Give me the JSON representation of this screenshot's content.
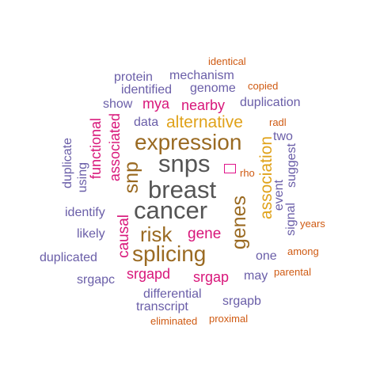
{
  "colors": {
    "dark": "#555555",
    "brown": "#9a6a22",
    "gold": "#e0a21a",
    "magenta": "#d8167a",
    "purple": "#6a5ea8",
    "orange": "#cf5a12"
  },
  "words": {
    "breast": "breast",
    "cancer": "cancer",
    "snps": "snps",
    "expression": "expression",
    "splicing": "splicing",
    "risk": "risk",
    "alternative": "alternative",
    "genes": "genes",
    "association": "association",
    "snp": "snp",
    "mya": "mya",
    "nearby": "nearby",
    "gene": "gene",
    "srgapd": "srgapd",
    "srgap": "srgap",
    "causal": "causal",
    "associated": "associated",
    "functional": "functional",
    "protein": "protein",
    "mechanism": "mechanism",
    "genome": "genome",
    "identified": "identified",
    "show": "show",
    "duplication": "duplication",
    "data": "data",
    "two": "two",
    "suggest": "suggest",
    "event": "event",
    "signal": "signal",
    "duplicate": "duplicate",
    "using": "using",
    "identify": "identify",
    "likely": "likely",
    "duplicated": "duplicated",
    "one": "one",
    "may": "may",
    "srgapc": "srgapc",
    "differential": "differential",
    "transcript": "transcript",
    "srgapb": "srgapb",
    "identical": "identical",
    "copied": "copied",
    "radl": "radl",
    "rho": "rho",
    "years": "years",
    "among": "among",
    "parental": "parental",
    "eliminated": "eliminated",
    "proximal": "proximal"
  }
}
